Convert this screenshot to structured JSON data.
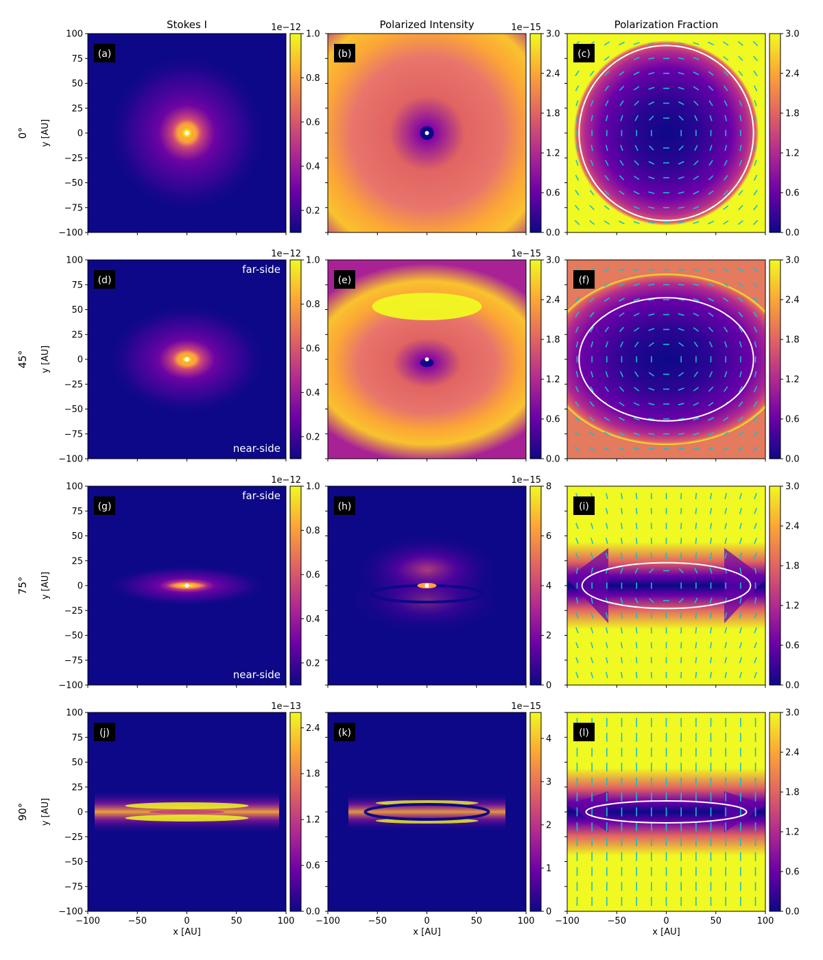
{
  "column_titles": [
    "Stokes I",
    "Polarized Intensity",
    "Polarization Fraction"
  ],
  "row_labels": [
    "0$^\\circ$",
    "45$^\\circ$",
    "75$^\\circ$",
    "90$^\\circ$"
  ],
  "row_labels_display": [
    "0°",
    "45°",
    "75°",
    "90°"
  ],
  "xlabel": "x [AU]",
  "ylabel": "y [AU]",
  "ticks": [
    "−100",
    "−75",
    "−50",
    "−25",
    "0",
    "25",
    "50",
    "75",
    "100"
  ],
  "xticks": [
    "−100",
    "−50",
    "0",
    "50",
    "100"
  ],
  "annotations": {
    "far_side": "far-side",
    "near_side": "near-side"
  },
  "colormap": [
    "#0d0887",
    "#6a00a8",
    "#b12a90",
    "#e16462",
    "#fca636",
    "#f0f921"
  ],
  "vector_color": "#17becf",
  "chart_data": {
    "type": "heatmap",
    "extent": [
      -100,
      100,
      -100,
      100
    ],
    "panels": [
      {
        "label": "(a)",
        "column": "Stokes I",
        "inclination": "0°",
        "cbar_ticks": [
          "0.2",
          "0.4",
          "0.6",
          "0.8",
          "1.0"
        ],
        "cbar_range": [
          0.1,
          1.0
        ],
        "cbar_offset": "1e−12"
      },
      {
        "label": "(b)",
        "column": "Polarized Intensity",
        "inclination": "0°",
        "cbar_ticks": [
          "0.0",
          "0.6",
          "1.2",
          "1.8",
          "2.4",
          "3.0"
        ],
        "cbar_range": [
          0,
          3.0
        ],
        "cbar_offset": "1e−15"
      },
      {
        "label": "(c)",
        "column": "Polarization Fraction",
        "inclination": "0°",
        "cbar_ticks": [
          "0.0",
          "0.6",
          "1.2",
          "1.8",
          "2.4",
          "3.0"
        ],
        "cbar_range": [
          0,
          3.0
        ],
        "cbar_offset": "",
        "ellipse": {
          "cx": 0,
          "cy": 0,
          "rx": 88,
          "ry": 88
        }
      },
      {
        "label": "(d)",
        "column": "Stokes I",
        "inclination": "45°",
        "cbar_ticks": [
          "0.2",
          "0.4",
          "0.6",
          "0.8",
          "1.0"
        ],
        "cbar_range": [
          0.1,
          1.0
        ],
        "cbar_offset": "1e−12",
        "far_side": true,
        "near_side": true
      },
      {
        "label": "(e)",
        "column": "Polarized Intensity",
        "inclination": "45°",
        "cbar_ticks": [
          "0.0",
          "0.6",
          "1.2",
          "1.8",
          "2.4",
          "3.0"
        ],
        "cbar_range": [
          0,
          3.0
        ],
        "cbar_offset": "1e−15"
      },
      {
        "label": "(f)",
        "column": "Polarization Fraction",
        "inclination": "45°",
        "cbar_ticks": [
          "0.0",
          "0.6",
          "1.2",
          "1.8",
          "2.4",
          "3.0"
        ],
        "cbar_range": [
          0,
          3.0
        ],
        "cbar_offset": "",
        "ellipse": {
          "cx": 0,
          "cy": 0,
          "rx": 88,
          "ry": 62
        }
      },
      {
        "label": "(g)",
        "column": "Stokes I",
        "inclination": "75°",
        "cbar_ticks": [
          "0.2",
          "0.4",
          "0.6",
          "0.8",
          "1.0"
        ],
        "cbar_range": [
          0.1,
          1.0
        ],
        "cbar_offset": "1e−12",
        "far_side": true,
        "near_side": true
      },
      {
        "label": "(h)",
        "column": "Polarized Intensity",
        "inclination": "75°",
        "cbar_ticks": [
          "0",
          "2",
          "4",
          "6",
          "8"
        ],
        "cbar_range": [
          0,
          8
        ],
        "cbar_offset": "1e−15"
      },
      {
        "label": "(i)",
        "column": "Polarization Fraction",
        "inclination": "75°",
        "cbar_ticks": [
          "0.0",
          "0.6",
          "1.2",
          "1.8",
          "2.4",
          "3.0"
        ],
        "cbar_range": [
          0,
          3.0
        ],
        "cbar_offset": "",
        "ellipse": {
          "cx": 0,
          "cy": 0,
          "rx": 85,
          "ry": 23
        }
      },
      {
        "label": "(j)",
        "column": "Stokes I",
        "inclination": "90°",
        "cbar_ticks": [
          "0.0",
          "0.6",
          "1.2",
          "1.8",
          "2.4"
        ],
        "cbar_range": [
          0,
          2.6
        ],
        "cbar_offset": "1e−13"
      },
      {
        "label": "(k)",
        "column": "Polarized Intensity",
        "inclination": "90°",
        "cbar_ticks": [
          "0",
          "1",
          "2",
          "3",
          "4"
        ],
        "cbar_range": [
          0,
          4.6
        ],
        "cbar_offset": "1e−15"
      },
      {
        "label": "(l)",
        "column": "Polarization Fraction",
        "inclination": "90°",
        "cbar_ticks": [
          "0.0",
          "0.6",
          "1.2",
          "1.8",
          "2.4",
          "3.0"
        ],
        "cbar_range": [
          0,
          3.0
        ],
        "cbar_offset": "",
        "ellipse": {
          "cx": 0,
          "cy": 0,
          "rx": 81,
          "ry": 11
        }
      }
    ]
  }
}
